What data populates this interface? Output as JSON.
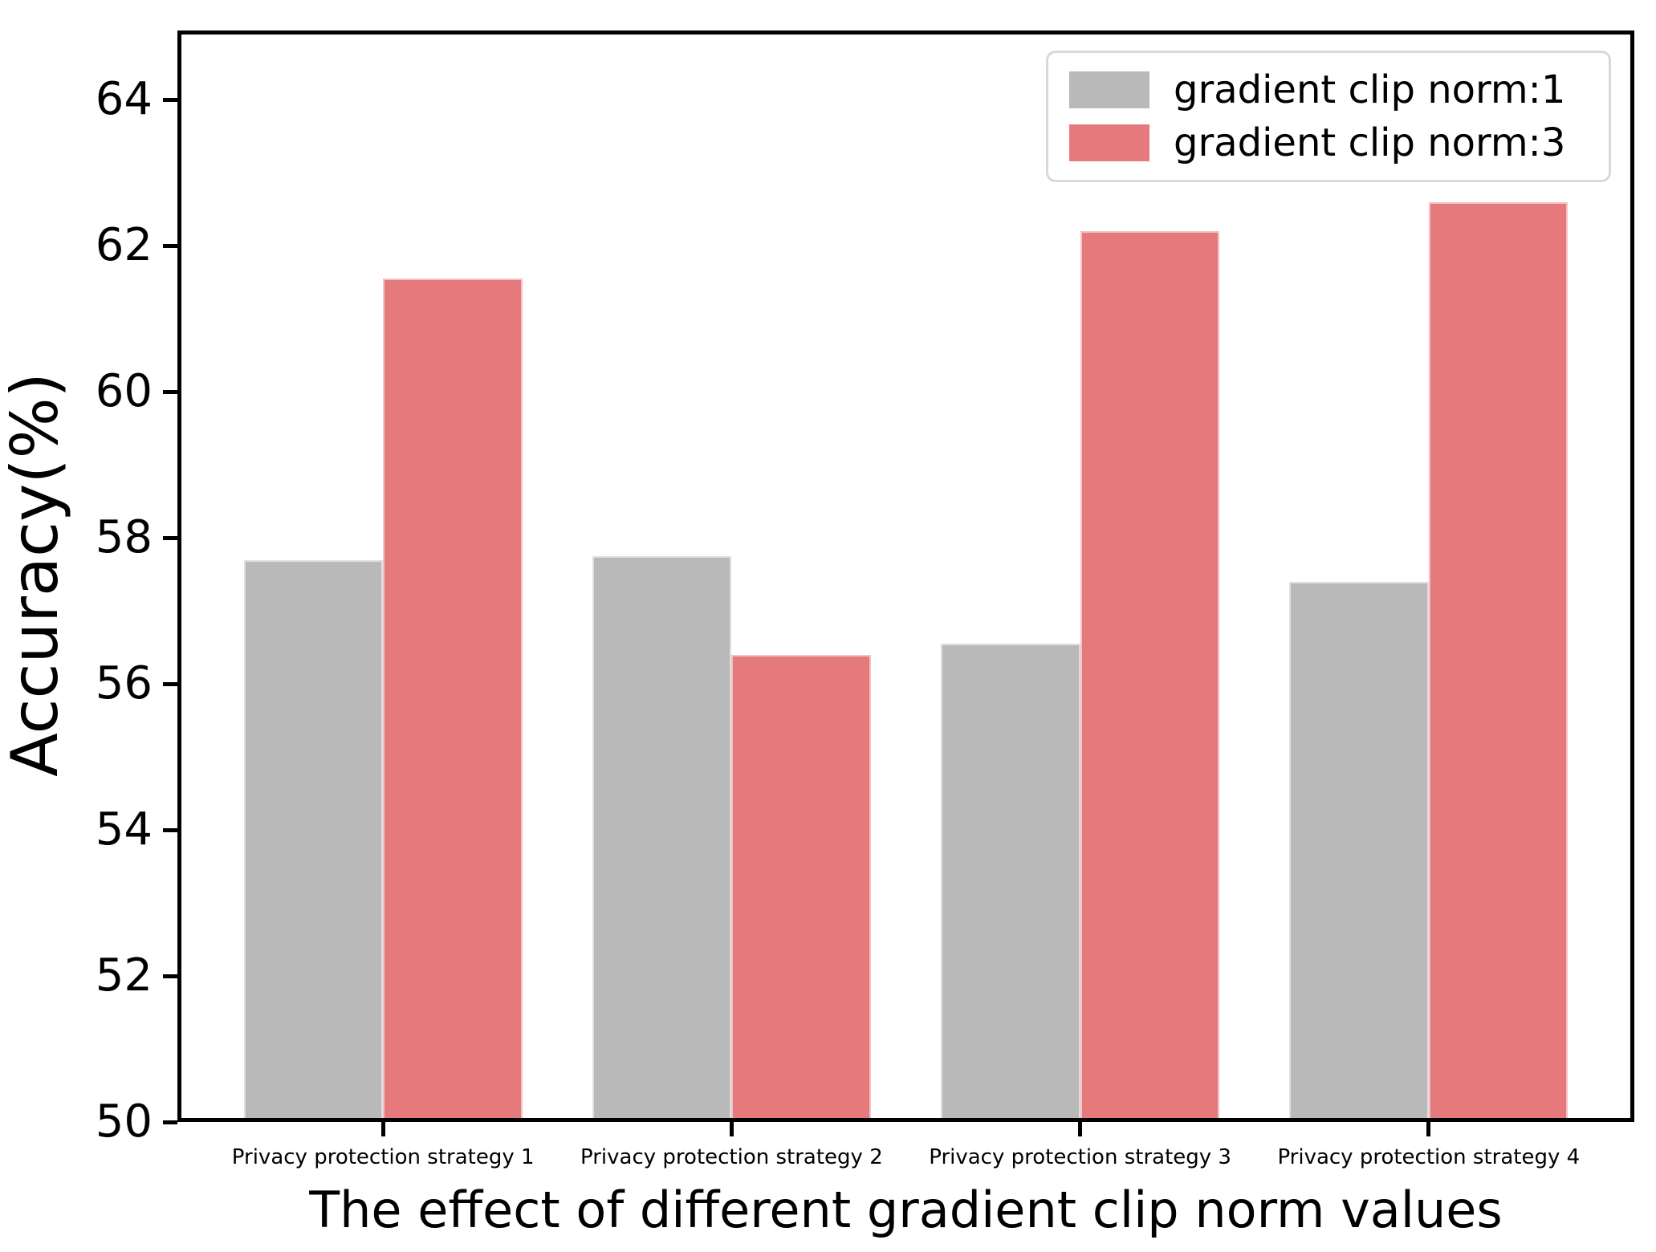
{
  "chart_data": {
    "type": "bar",
    "title": "",
    "xlabel": "The effect of different gradient clip norm values",
    "ylabel": "Accuracy(%)",
    "categories": [
      "Privacy protection strategy 1",
      "Privacy protection strategy 2",
      "Privacy protection strategy 3",
      "Privacy protection strategy 4"
    ],
    "series": [
      {
        "name": "gradient clip norm:1",
        "color": "#b9b9b9",
        "values": [
          57.7,
          57.75,
          56.55,
          57.4
        ]
      },
      {
        "name": "gradient clip norm:3",
        "color": "#e5797c",
        "values": [
          61.55,
          56.4,
          62.2,
          62.6
        ]
      }
    ],
    "yticks": [
      50,
      52,
      54,
      56,
      58,
      60,
      62,
      64
    ],
    "ylim": [
      50,
      64.95
    ],
    "grid": false,
    "legend_position": "upper right"
  },
  "colors": {
    "bar_gray": "#b9b9b9",
    "bar_red": "#e5797c",
    "spine": "#000000",
    "legend_border": "#d9d9d9",
    "background": "#ffffff",
    "text": "#000000"
  }
}
